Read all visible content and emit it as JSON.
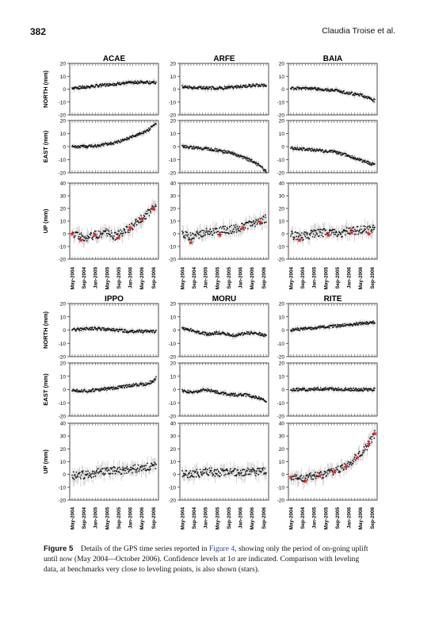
{
  "header": {
    "page_number": "382",
    "running_head": "Claudia Troise et al."
  },
  "caption": {
    "label": "Figure 5",
    "text_1": "Details of the GPS time series reported in ",
    "figure_ref": "Figure 4",
    "text_2": ", showing only the period of on-going uplift until now (May 2004—October 2006). Confidence levels at 1σ are indicated. Comparison with leveling data, at benchmarks very close to leveling points, is also shown (stars)."
  },
  "chart_data": {
    "type": "scatter",
    "x_range": [
      "2004-05",
      "2006-10"
    ],
    "x_tick_labels": [
      "May-2004",
      "Sep-2004",
      "Jan-2005",
      "May-2005",
      "Sep-2005",
      "Jan-2006",
      "May-2006",
      "Sep-2006"
    ],
    "row_labels": {
      "north": "NORTH (mm)",
      "east": "EAST (mm)",
      "up": "UP (mm)"
    },
    "ylim": {
      "north": [
        -20,
        20
      ],
      "east": [
        -20,
        20
      ],
      "up": [
        -20,
        40
      ]
    },
    "y_ticks": {
      "north": [
        20,
        10,
        0,
        -10,
        -20
      ],
      "east": [
        20,
        10,
        0,
        -10,
        -20
      ],
      "up": [
        40,
        30,
        20,
        10,
        0,
        -10,
        -20
      ]
    },
    "star_color": "#e8202a",
    "groups": [
      {
        "stations": [
          {
            "name": "ACAE",
            "north": [
              [
                0,
                1
              ],
              [
                5,
                1.5
              ],
              [
                10,
                3
              ],
              [
                15,
                4
              ],
              [
                20,
                5
              ],
              [
                25,
                5.5
              ],
              [
                29,
                5
              ]
            ],
            "east": [
              [
                0,
                0
              ],
              [
                5,
                0
              ],
              [
                10,
                1
              ],
              [
                15,
                3
              ],
              [
                20,
                7
              ],
              [
                25,
                11
              ],
              [
                27,
                14
              ],
              [
                29,
                17
              ]
            ],
            "up": [
              [
                0,
                0
              ],
              [
                4,
                -3
              ],
              [
                8,
                -1
              ],
              [
                12,
                1
              ],
              [
                15,
                -2
              ],
              [
                18,
                2
              ],
              [
                21,
                6
              ],
              [
                25,
                14
              ],
              [
                29,
                22
              ]
            ],
            "stars": [
              [
                0,
                0
              ],
              [
                3,
                -5
              ],
              [
                8,
                -1
              ],
              [
                16,
                -3
              ],
              [
                20,
                5
              ],
              [
                24,
                12
              ],
              [
                28,
                20
              ]
            ]
          },
          {
            "name": "ARFE",
            "north": [
              [
                0,
                2
              ],
              [
                5,
                1
              ],
              [
                10,
                1
              ],
              [
                15,
                1
              ],
              [
                20,
                2
              ],
              [
                25,
                3
              ],
              [
                29,
                3
              ]
            ],
            "east": [
              [
                0,
                0
              ],
              [
                5,
                -1
              ],
              [
                10,
                -2
              ],
              [
                15,
                -4
              ],
              [
                20,
                -7
              ],
              [
                24,
                -11
              ],
              [
                27,
                -15
              ],
              [
                29,
                -19
              ]
            ],
            "up": [
              [
                0,
                -1
              ],
              [
                4,
                -2
              ],
              [
                8,
                1
              ],
              [
                12,
                2
              ],
              [
                16,
                3
              ],
              [
                20,
                5
              ],
              [
                24,
                8
              ],
              [
                29,
                12
              ]
            ],
            "stars": [
              [
                3,
                -7
              ],
              [
                13,
                -1
              ],
              [
                21,
                5
              ],
              [
                27,
                9
              ]
            ]
          },
          {
            "name": "BAIA",
            "north": [
              [
                0,
                1
              ],
              [
                5,
                0.5
              ],
              [
                10,
                0
              ],
              [
                15,
                -1
              ],
              [
                20,
                -3
              ],
              [
                25,
                -5
              ],
              [
                28,
                -8
              ],
              [
                29,
                -9
              ]
            ],
            "east": [
              [
                0,
                -1
              ],
              [
                5,
                -2
              ],
              [
                10,
                -3
              ],
              [
                15,
                -4
              ],
              [
                20,
                -7
              ],
              [
                25,
                -11
              ],
              [
                29,
                -14
              ]
            ],
            "up": [
              [
                0,
                -1
              ],
              [
                4,
                -2
              ],
              [
                8,
                0
              ],
              [
                12,
                1
              ],
              [
                16,
                0
              ],
              [
                20,
                2
              ],
              [
                24,
                3
              ],
              [
                29,
                4
              ]
            ],
            "stars": [
              [
                3,
                -5
              ],
              [
                13,
                -1
              ],
              [
                21,
                1
              ],
              [
                27,
                0
              ]
            ]
          }
        ]
      },
      {
        "stations": [
          {
            "name": "IPPO",
            "north": [
              [
                0,
                0
              ],
              [
                5,
                1
              ],
              [
                10,
                1
              ],
              [
                15,
                0
              ],
              [
                20,
                -1
              ],
              [
                25,
                -1
              ],
              [
                29,
                -1
              ]
            ],
            "east": [
              [
                0,
                -1
              ],
              [
                5,
                -1
              ],
              [
                10,
                0
              ],
              [
                15,
                1
              ],
              [
                20,
                3
              ],
              [
                25,
                4
              ],
              [
                28,
                6
              ],
              [
                29,
                9
              ]
            ],
            "up": [
              [
                0,
                -1
              ],
              [
                5,
                0
              ],
              [
                10,
                2
              ],
              [
                15,
                3
              ],
              [
                20,
                4
              ],
              [
                25,
                5
              ],
              [
                29,
                7
              ]
            ],
            "stars": []
          },
          {
            "name": "MORU",
            "north": [
              [
                0,
                1
              ],
              [
                3,
                0
              ],
              [
                6,
                -2
              ],
              [
                9,
                -3
              ],
              [
                12,
                -2
              ],
              [
                15,
                -3
              ],
              [
                18,
                -4
              ],
              [
                21,
                -3
              ],
              [
                24,
                -2
              ],
              [
                27,
                -3
              ],
              [
                29,
                -4
              ]
            ],
            "east": [
              [
                0,
                -1
              ],
              [
                4,
                -2
              ],
              [
                8,
                0
              ],
              [
                10,
                -1
              ],
              [
                14,
                -3
              ],
              [
                18,
                -4
              ],
              [
                22,
                -4
              ],
              [
                26,
                -6
              ],
              [
                29,
                -9
              ]
            ],
            "up": [
              [
                0,
                0
              ],
              [
                5,
                1
              ],
              [
                10,
                2
              ],
              [
                15,
                1
              ],
              [
                20,
                2
              ],
              [
                25,
                2
              ],
              [
                29,
                3
              ]
            ],
            "stars": []
          },
          {
            "name": "RITE",
            "north": [
              [
                0,
                0
              ],
              [
                5,
                1
              ],
              [
                10,
                2
              ],
              [
                15,
                3
              ],
              [
                20,
                4
              ],
              [
                25,
                5
              ],
              [
                29,
                6
              ]
            ],
            "east": [
              [
                0,
                0
              ],
              [
                5,
                0
              ],
              [
                10,
                0.5
              ],
              [
                15,
                0.5
              ],
              [
                20,
                0
              ],
              [
                25,
                0
              ],
              [
                29,
                0
              ]
            ],
            "up": [
              [
                0,
                -2
              ],
              [
                4,
                -3
              ],
              [
                8,
                -1
              ],
              [
                12,
                0
              ],
              [
                16,
                3
              ],
              [
                19,
                7
              ],
              [
                22,
                12
              ],
              [
                25,
                18
              ],
              [
                27,
                24
              ],
              [
                29,
                32
              ]
            ],
            "stars": [
              [
                0,
                -2
              ],
              [
                5,
                -5
              ],
              [
                10,
                -1
              ],
              [
                15,
                2
              ],
              [
                19,
                6
              ],
              [
                23,
                13
              ],
              [
                27,
                24
              ],
              [
                29,
                32
              ]
            ]
          }
        ]
      }
    ]
  }
}
